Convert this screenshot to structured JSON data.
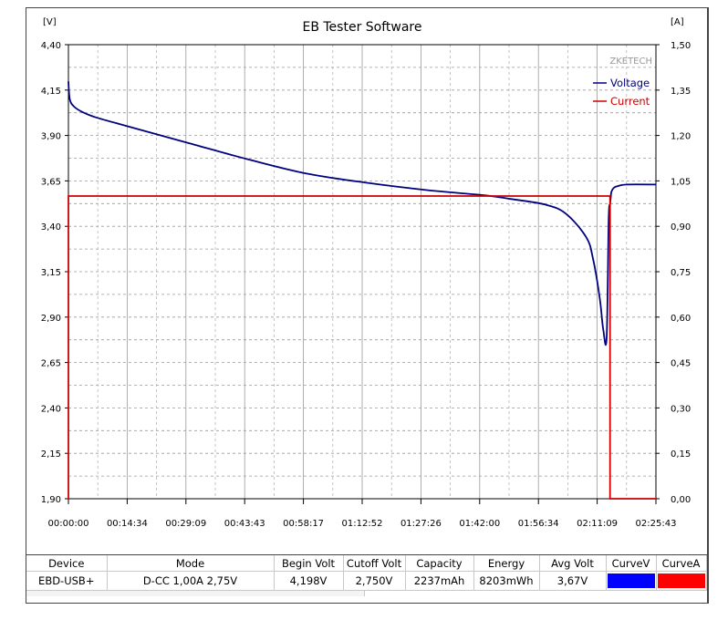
{
  "chart_data": {
    "type": "line",
    "title": "EB Tester Software",
    "brand": "ZKETECH",
    "left_axis": {
      "unit_label": "[V]",
      "range": [
        1.9,
        4.4
      ],
      "ticks": [
        "4,40",
        "4,15",
        "3,90",
        "3,65",
        "3,40",
        "3,15",
        "2,90",
        "2,65",
        "2,40",
        "2,15",
        "1,90"
      ]
    },
    "right_axis": {
      "unit_label": "[A]",
      "range": [
        0.0,
        1.5
      ],
      "ticks": [
        "1,50",
        "1,35",
        "1,20",
        "1,05",
        "0,90",
        "0,75",
        "0,60",
        "0,45",
        "0,30",
        "0,15",
        "0,00"
      ]
    },
    "x_axis": {
      "range_seconds": [
        0,
        8623
      ],
      "ticks": [
        "00:00:00",
        "00:14:34",
        "00:29:09",
        "00:43:43",
        "00:58:17",
        "01:12:52",
        "01:27:26",
        "01:42:00",
        "01:56:34",
        "02:11:09",
        "02:25:43"
      ]
    },
    "grid": true,
    "legend_position": "top-right",
    "series": [
      {
        "name": "Voltage",
        "axis": "left",
        "color": "#000080",
        "x_seconds": [
          0,
          20,
          80,
          200,
          400,
          874,
          1749,
          2623,
          3497,
          4372,
          5246,
          6120,
          6500,
          6994,
          7300,
          7600,
          7700,
          7800,
          7850,
          7900,
          7930,
          7950,
          7960,
          7970,
          8000,
          8050,
          8200,
          8623
        ],
        "y": [
          4.198,
          4.1,
          4.06,
          4.03,
          4.0,
          3.95,
          3.86,
          3.77,
          3.69,
          3.64,
          3.6,
          3.57,
          3.55,
          3.52,
          3.47,
          3.34,
          3.22,
          3.0,
          2.83,
          2.79,
          3.44,
          3.52,
          3.56,
          3.59,
          3.61,
          3.62,
          3.63,
          3.63
        ]
      },
      {
        "name": "Current",
        "axis": "right",
        "color": "#cc0000",
        "x_seconds": [
          0,
          0,
          7950,
          7950,
          8623
        ],
        "y": [
          0.0,
          1.0,
          1.0,
          0.0,
          0.0
        ]
      }
    ]
  },
  "info_table": {
    "headers": [
      "Device",
      "Mode",
      "Begin Volt",
      "Cutoff Volt",
      "Capacity",
      "Energy",
      "Avg Volt",
      "CurveV",
      "CurveA"
    ],
    "row": {
      "device": "EBD-USB+",
      "mode": "D-CC  1,00A  2,75V",
      "begin_volt": "4,198V",
      "cutoff_volt": "2,750V",
      "capacity": "2237mAh",
      "energy": "8203mWh",
      "avg_volt": "3,67V",
      "curve_v_color": "#0000ff",
      "curve_a_color": "#ff0000"
    }
  }
}
